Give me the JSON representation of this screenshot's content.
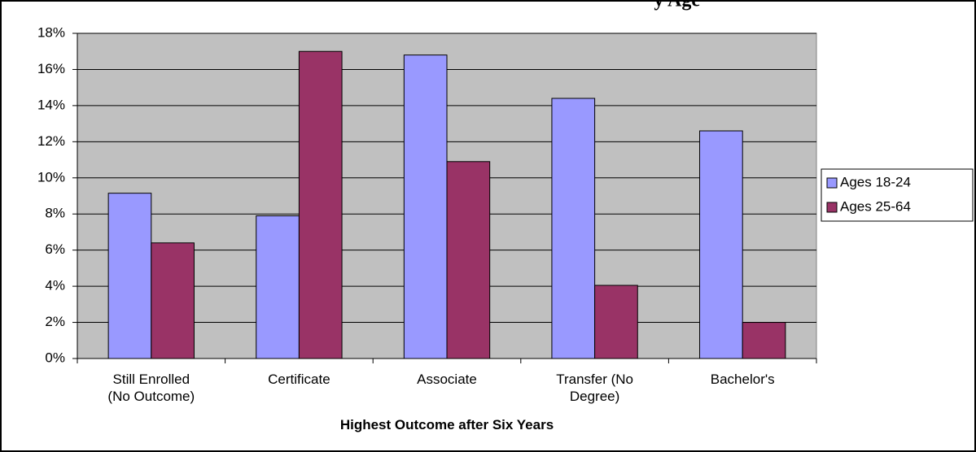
{
  "chart_data": {
    "type": "bar",
    "title": "y Age",
    "categories": [
      "Still Enrolled\n(No Outcome)",
      "Certificate",
      "Associate",
      "Transfer (No\nDegree)",
      "Bachelor's"
    ],
    "series": [
      {
        "name": "Ages 18-24",
        "color": "#9999ff",
        "values": [
          9.15,
          7.9,
          16.8,
          14.4,
          12.6
        ]
      },
      {
        "name": "Ages 25-64",
        "color": "#993366",
        "values": [
          6.4,
          17.0,
          10.9,
          4.05,
          2.0
        ]
      }
    ],
    "xlabel": "Highest Outcome after Six Years",
    "ylim": [
      0,
      18
    ],
    "yticks": [
      {
        "value": 0,
        "label": "0%"
      },
      {
        "value": 2,
        "label": "2%"
      },
      {
        "value": 4,
        "label": "4%"
      },
      {
        "value": 6,
        "label": "6%"
      },
      {
        "value": 8,
        "label": "8%"
      },
      {
        "value": 10,
        "label": "10%"
      },
      {
        "value": 12,
        "label": "12%"
      },
      {
        "value": 14,
        "label": "14%"
      },
      {
        "value": 16,
        "label": "16%"
      },
      {
        "value": 18,
        "label": "18%"
      }
    ],
    "grid": true,
    "legend": "right",
    "plot_background": "#c0c0c0"
  }
}
